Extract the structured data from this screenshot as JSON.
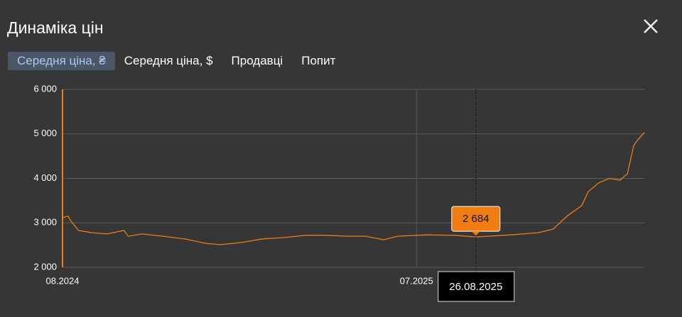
{
  "header": {
    "title": "Динаміка цін"
  },
  "tabs": [
    "Середня ціна, ₴",
    "Середня ціна, $",
    "Продавці",
    "Попит"
  ],
  "active_tab": 0,
  "chart_data": {
    "type": "line",
    "x": [
      "01.08.2024",
      "06.08.2024",
      "09.08.2024",
      "16.08.2024",
      "29.08.2024",
      "12.09.2024",
      "28.09.2024",
      "02.10.2024",
      "15.10.2024",
      "04.11.2024",
      "24.11.2024",
      "14.12.2024",
      "28.12.2024",
      "17.01.2025",
      "06.02.2025",
      "26.02.2025",
      "18.03.2025",
      "07.04.2025",
      "27.04.2025",
      "14.05.2025",
      "31.05.2025",
      "13.06.2025",
      "10.07.2025",
      "06.08.2025",
      "26.08.2025",
      "28.09.2025",
      "24.10.2025",
      "07.11.2025",
      "20.11.2025",
      "04.12.2025",
      "10.12.2025",
      "20.12.2025",
      "30.12.2025",
      "09.01.2026",
      "16.01.2026",
      "22.01.2026",
      "26.01.2026",
      "01.02.2026"
    ],
    "values": [
      3116,
      3150,
      3040,
      2830,
      2780,
      2750,
      2830,
      2700,
      2750,
      2700,
      2640,
      2540,
      2510,
      2560,
      2640,
      2670,
      2720,
      2720,
      2700,
      2700,
      2620,
      2700,
      2730,
      2720,
      2684,
      2730,
      2780,
      2860,
      3150,
      3390,
      3700,
      3900,
      4000,
      3960,
      4100,
      4740,
      4870,
      5030
    ],
    "color": "#f07c12",
    "xlim": [
      "08.2024",
      "02.2026"
    ],
    "xticks": [
      "08.2024",
      "07.2025"
    ],
    "ylim": [
      2000,
      6000
    ],
    "yticks": [
      {
        "value": 2000,
        "label": "2 000"
      },
      {
        "value": 3000,
        "label": "3 000"
      },
      {
        "value": 4000,
        "label": "4 000"
      },
      {
        "value": 5000,
        "label": "5 000"
      },
      {
        "value": 6000,
        "label": "6 000"
      }
    ],
    "grid": true,
    "tooltip": {
      "x": "26.08.2025",
      "value": 2684,
      "label": "2 684"
    }
  }
}
